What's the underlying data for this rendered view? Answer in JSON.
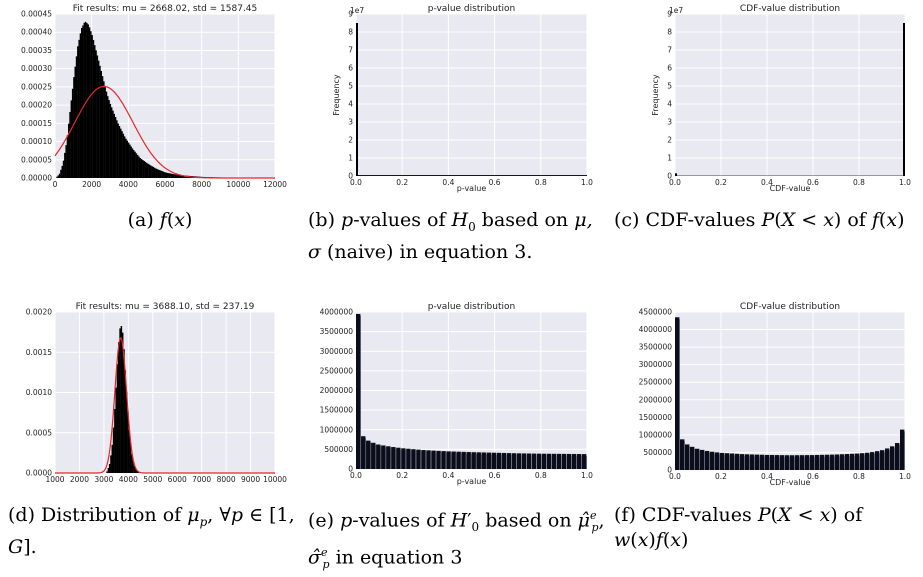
{
  "chart_data": [
    {
      "id": "a",
      "type": "bar",
      "title": "Fit results: mu = 2668.02,  std = 1587.45",
      "xlabel": "",
      "ylabel": "",
      "xlim": [
        0,
        12000
      ],
      "ylim": [
        0,
        0.00045
      ],
      "xticks": [
        "0",
        "2000",
        "4000",
        "6000",
        "8000",
        "10000",
        "12000"
      ],
      "yticks": [
        "0.00000",
        "0.00005",
        "0.00010",
        "0.00015",
        "0.00020",
        "0.00025",
        "0.00030",
        "0.00035",
        "0.00040",
        "0.00045"
      ],
      "histogram": {
        "x": [
          0,
          200,
          400,
          600,
          800,
          1000,
          1200,
          1400,
          1600,
          1800,
          2000,
          2200,
          2400,
          2600,
          2800,
          3000,
          3400,
          3800,
          4200,
          4600,
          5000,
          5500,
          6000,
          6500,
          7000,
          7500,
          8000,
          9000,
          10000,
          11000,
          12000
        ],
        "y": [
          0.0,
          1e-05,
          4e-05,
          0.0001,
          0.00019,
          0.00028,
          0.00036,
          0.00041,
          0.00043,
          0.00042,
          0.00039,
          0.00035,
          0.00031,
          0.00027,
          0.00023,
          0.0002,
          0.00015,
          0.00011,
          8e-05,
          5.5e-05,
          4e-05,
          2.5e-05,
          1.5e-05,
          1e-05,
          7e-06,
          5e-06,
          3e-06,
          1.5e-06,
          8e-07,
          3e-07,
          1e-07
        ]
      },
      "fit_curve": {
        "mu": 2668.02,
        "std": 1587.45,
        "color": "#e8252b"
      },
      "grid": true,
      "bg": "#e9e9f1",
      "bar_color": "#000000"
    },
    {
      "id": "b",
      "type": "bar",
      "title": "p-value distribution",
      "xlabel": "p-value",
      "ylabel": "Frequency",
      "offset_label": "1e7",
      "xlim": [
        0,
        1
      ],
      "ylim": [
        0,
        9
      ],
      "xticks": [
        "0.0",
        "0.2",
        "0.4",
        "0.6",
        "0.8",
        "1.0"
      ],
      "yticks": [
        "0",
        "1",
        "2",
        "3",
        "4",
        "5",
        "6",
        "7",
        "8",
        "9"
      ],
      "bars": [
        {
          "x": 0.0,
          "value": 8.5
        }
      ],
      "baseline": 0.05,
      "grid": true,
      "bg": "#e9e9f1",
      "bar_color": "#000000"
    },
    {
      "id": "c",
      "type": "bar",
      "title": "CDF-value distribution",
      "xlabel": "CDF-value",
      "ylabel": "Frequency",
      "offset_label": "1e7",
      "xlim": [
        0,
        1
      ],
      "ylim": [
        0,
        9
      ],
      "xticks": [
        "0.0",
        "0.2",
        "0.4",
        "0.6",
        "0.8",
        "1.0"
      ],
      "yticks": [
        "0",
        "1",
        "2",
        "3",
        "4",
        "5",
        "6",
        "7",
        "8",
        "9"
      ],
      "bars": [
        {
          "x": 0.0,
          "value": 0.15
        },
        {
          "x": 1.0,
          "value": 8.5
        }
      ],
      "baseline": 0.02,
      "grid": true,
      "bg": "#e9e9f1",
      "bar_color": "#000000"
    },
    {
      "id": "d",
      "type": "bar",
      "title": "Fit results: mu = 3688.10,  std = 237.19",
      "xlabel": "",
      "ylabel": "",
      "xlim": [
        1000,
        10000
      ],
      "ylim": [
        0,
        0.002
      ],
      "xticks": [
        "1000",
        "2000",
        "3000",
        "4000",
        "5000",
        "6000",
        "7000",
        "8000",
        "9000",
        "10000"
      ],
      "yticks": [
        "0.0000",
        "0.0005",
        "0.0010",
        "0.0015",
        "0.0020"
      ],
      "histogram": {
        "x": [
          3100,
          3200,
          3300,
          3400,
          3500,
          3550,
          3600,
          3650,
          3700,
          3750,
          3800,
          3850,
          3900,
          4000,
          4100,
          4200,
          4300,
          4400
        ],
        "y": [
          2e-05,
          0.0001,
          0.0003,
          0.0007,
          0.0012,
          0.0015,
          0.00172,
          0.00184,
          0.00182,
          0.00172,
          0.0015,
          0.00125,
          0.001,
          0.00055,
          0.00025,
          0.0001,
          4e-05,
          1e-05
        ]
      },
      "fit_curve": {
        "mu": 3688.1,
        "std": 237.19,
        "color": "#e8252b"
      },
      "grid": true,
      "bg": "#e9e9f1",
      "bar_color": "#000000"
    },
    {
      "id": "e",
      "type": "bar",
      "title": "p-value distribution",
      "xlabel": "p-value",
      "ylabel": "",
      "xlim": [
        0,
        1
      ],
      "ylim": [
        0,
        4000000
      ],
      "xticks": [
        "0.0",
        "0.2",
        "0.4",
        "0.6",
        "0.8",
        "1.0"
      ],
      "yticks": [
        "0",
        "500000",
        "1000000",
        "1500000",
        "2000000",
        "2500000",
        "3000000",
        "3500000",
        "4000000"
      ],
      "curve": {
        "x": [
          0.0,
          0.005,
          0.01,
          0.02,
          0.04,
          0.06,
          0.1,
          0.15,
          0.2,
          0.3,
          0.4,
          0.5,
          0.6,
          0.7,
          0.8,
          0.9,
          1.0
        ],
        "y": [
          3950000,
          1500000,
          1150000,
          930000,
          780000,
          700000,
          620000,
          570000,
          530000,
          480000,
          450000,
          430000,
          415000,
          400000,
          390000,
          385000,
          380000
        ]
      },
      "grid": true,
      "bg": "#e9e9f1",
      "bar_color": "#0d0d1a"
    },
    {
      "id": "f",
      "type": "bar",
      "title": "CDF-value distribution",
      "xlabel": "CDF-value",
      "ylabel": "",
      "xlim": [
        0,
        1
      ],
      "ylim": [
        0,
        4500000
      ],
      "xticks": [
        "0.0",
        "0.2",
        "0.4",
        "0.6",
        "0.8",
        "1.0"
      ],
      "yticks": [
        "0",
        "500000",
        "1000000",
        "1500000",
        "2000000",
        "2500000",
        "3000000",
        "3500000",
        "4000000",
        "4500000"
      ],
      "curve": {
        "x": [
          0.0,
          0.005,
          0.01,
          0.02,
          0.04,
          0.06,
          0.1,
          0.15,
          0.2,
          0.3,
          0.4,
          0.5,
          0.6,
          0.7,
          0.8,
          0.85,
          0.9,
          0.94,
          0.97,
          0.99,
          1.0
        ],
        "y": [
          4350000,
          1650000,
          1250000,
          1000000,
          800000,
          700000,
          600000,
          530000,
          490000,
          450000,
          430000,
          420000,
          425000,
          440000,
          470000,
          500000,
          560000,
          650000,
          780000,
          950000,
          1150000
        ]
      },
      "grid": true,
      "bg": "#e9e9f1",
      "bar_color": "#0d0d1a"
    }
  ],
  "captions": {
    "a": "(a) f(x)",
    "b": "(b) p-values of H0 based on μ, σ (naive) in equation 3.",
    "c": "(c) CDF-values P(X < x) of f(x)",
    "d": "(d) Distribution of μp, ∀p ∈ [1, G].",
    "e": "(e) p-values of H0′ based on μ̂ep, σ̂ep in equation 3",
    "f": "(f) CDF-values P(X < x) of w(x)f(x)"
  }
}
